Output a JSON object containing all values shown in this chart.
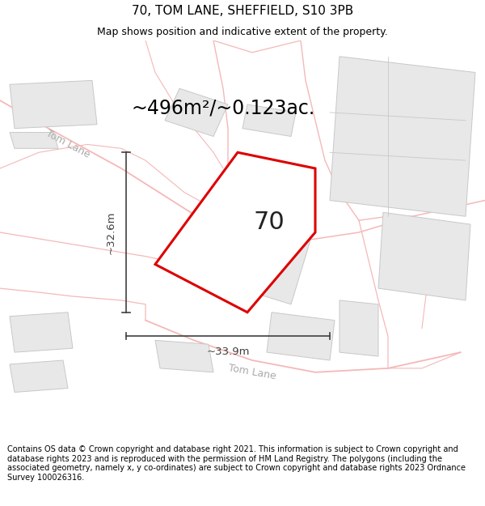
{
  "title": "70, TOM LANE, SHEFFIELD, S10 3PB",
  "subtitle": "Map shows position and indicative extent of the property.",
  "area_label": "~496m²/~0.123ac.",
  "plot_number": "70",
  "dim_width": "~33.9m",
  "dim_height": "~32.6m",
  "footer": "Contains OS data © Crown copyright and database right 2021. This information is subject to Crown copyright and database rights 2023 and is reproduced with the permission of HM Land Registry. The polygons (including the associated geometry, namely x, y co-ordinates) are subject to Crown copyright and database rights 2023 Ordnance Survey 100026316.",
  "map_bg": "#ffffff",
  "plot_color": "#dd0000",
  "plot_fill": "#ffffff",
  "road_color": "#f5b8b8",
  "road_outline_color": "#e8c8c8",
  "building_fill": "#e8e8e8",
  "building_edge": "#c8c8c8",
  "dim_color": "#404040",
  "road_label_color": "#aaaaaa",
  "title_fontsize": 11,
  "subtitle_fontsize": 9,
  "area_fontsize": 17,
  "number_fontsize": 22,
  "dim_fontsize": 9.5,
  "footer_fontsize": 7.0,
  "road_label_fontsize": 9
}
